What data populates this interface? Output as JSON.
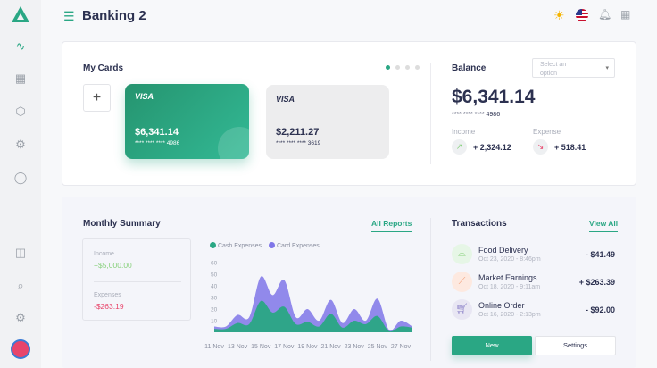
{
  "header": {
    "title": "Banking 2"
  },
  "sidebar": {
    "items": [
      "activity-icon",
      "grid-icon",
      "box-icon",
      "cpu-icon",
      "chat-icon",
      "sidebar-icon",
      "search-icon",
      "settings-icon"
    ]
  },
  "my_cards": {
    "title": "My Cards",
    "add_label": "+",
    "cards": [
      {
        "brand": "VISA",
        "amount": "$6,341.14",
        "number": "**** **** **** 4986"
      },
      {
        "brand": "VISA",
        "amount": "$2,211.27",
        "number": "**** **** **** 3619"
      }
    ],
    "pages": 4,
    "active_page": 1
  },
  "balance": {
    "title": "Balance",
    "select_placeholder": "Select an option",
    "amount": "$6,341.14",
    "number": "**** **** **** 4986",
    "income_label": "Income",
    "income_value": "+ 2,324.12",
    "expense_label": "Expense",
    "expense_value": "+ 518.41"
  },
  "summary": {
    "title": "Monthly Summary",
    "link": "All Reports",
    "income_label": "Income",
    "income_value": "+$5,000.00",
    "expenses_label": "Expenses",
    "expenses_value": "-$263.19"
  },
  "chart_data": {
    "type": "area",
    "stacked": true,
    "x": [
      "11 Nov",
      "12 Nov",
      "13 Nov",
      "14 Nov",
      "15 Nov",
      "16 Nov",
      "17 Nov",
      "18 Nov",
      "19 Nov",
      "20 Nov",
      "21 Nov",
      "22 Nov",
      "23 Nov",
      "24 Nov",
      "25 Nov",
      "26 Nov",
      "27 Nov",
      "28 Nov"
    ],
    "tick_labels": [
      "11 Nov",
      "13 Nov",
      "15 Nov",
      "17 Nov",
      "19 Nov",
      "21 Nov",
      "23 Nov",
      "25 Nov",
      "27 Nov"
    ],
    "yticks": [
      10,
      20,
      30,
      40,
      50,
      60
    ],
    "ylim": [
      0,
      60
    ],
    "legend": "top-left",
    "series": [
      {
        "name": "Cash Expenses",
        "color": "#2aa784",
        "values": [
          3,
          3,
          8,
          7,
          27,
          17,
          22,
          7,
          9,
          5,
          16,
          4,
          10,
          7,
          14,
          1,
          5,
          4
        ]
      },
      {
        "name": "Card Expenses",
        "color": "#7f76e8",
        "values": [
          2,
          2,
          7,
          6,
          21,
          15,
          23,
          6,
          11,
          5,
          12,
          4,
          10,
          3,
          15,
          1,
          5,
          1
        ]
      }
    ]
  },
  "transactions": {
    "title": "Transactions",
    "link": "View All",
    "items": [
      {
        "name": "Food Delivery",
        "date": "Oct 23, 2020 - 8:46pm",
        "amount": "- $41.49"
      },
      {
        "name": "Market Earnings",
        "date": "Oct 18, 2020 - 9:11am",
        "amount": "+ $263.39"
      },
      {
        "name": "Online Order",
        "date": "Oct 16, 2020 - 2:13pm",
        "amount": "- $92.00"
      }
    ],
    "new_label": "New",
    "settings_label": "Settings"
  },
  "colors": {
    "accent": "#2aa784",
    "secondary": "#7f76e8",
    "negative": "#e8456b",
    "positive": "#8ad17f"
  }
}
